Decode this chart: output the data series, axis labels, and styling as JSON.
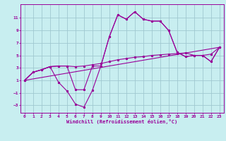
{
  "xlabel": "Windchill (Refroidissement éolien,°C)",
  "bg_color": "#c8eef0",
  "grid_color": "#a0c8d0",
  "line_color": "#990099",
  "xlim": [
    -0.5,
    23.5
  ],
  "ylim": [
    -4.2,
    13.2
  ],
  "xticks": [
    0,
    1,
    2,
    3,
    4,
    5,
    6,
    7,
    8,
    9,
    10,
    11,
    12,
    13,
    14,
    15,
    16,
    17,
    18,
    19,
    20,
    21,
    22,
    23
  ],
  "yticks": [
    -3,
    -1,
    1,
    3,
    5,
    7,
    9,
    11
  ],
  "series_smooth_x": [
    0,
    1,
    2,
    3,
    4,
    5,
    6,
    7,
    8,
    9,
    10,
    11,
    12,
    13,
    14,
    15,
    16,
    17,
    18,
    19,
    20,
    21,
    22,
    23
  ],
  "series_smooth_y": [
    1.0,
    2.3,
    2.7,
    3.2,
    3.3,
    3.3,
    3.2,
    3.3,
    3.5,
    3.7,
    4.0,
    4.3,
    4.5,
    4.7,
    4.8,
    5.0,
    5.1,
    5.2,
    5.3,
    5.4,
    5.0,
    5.0,
    5.2,
    6.3
  ],
  "series_upper_x": [
    0,
    1,
    2,
    3,
    4,
    5,
    6,
    7,
    8,
    9,
    10,
    11,
    12,
    13,
    14,
    15,
    16,
    17,
    18,
    19,
    20,
    21,
    22,
    23
  ],
  "series_upper_y": [
    1.0,
    2.3,
    2.7,
    3.2,
    3.3,
    3.3,
    -0.5,
    -0.5,
    3.3,
    3.3,
    8.0,
    11.5,
    10.8,
    12.0,
    10.8,
    10.5,
    10.5,
    9.0,
    5.5,
    4.8,
    5.0,
    5.0,
    4.0,
    6.3
  ],
  "series_lower_x": [
    0,
    1,
    2,
    3,
    4,
    5,
    6,
    7,
    8,
    9,
    10,
    11,
    12,
    13,
    14,
    15,
    16,
    17,
    18,
    19,
    20,
    21,
    22,
    23
  ],
  "series_lower_y": [
    1.0,
    2.3,
    2.7,
    3.2,
    0.7,
    -0.7,
    -2.8,
    -3.3,
    -0.6,
    3.3,
    8.0,
    11.5,
    10.8,
    12.0,
    10.8,
    10.5,
    10.5,
    9.0,
    5.5,
    4.8,
    5.0,
    5.0,
    4.0,
    6.3
  ],
  "series_line_x": [
    0,
    23
  ],
  "series_line_y": [
    1.0,
    6.3
  ]
}
